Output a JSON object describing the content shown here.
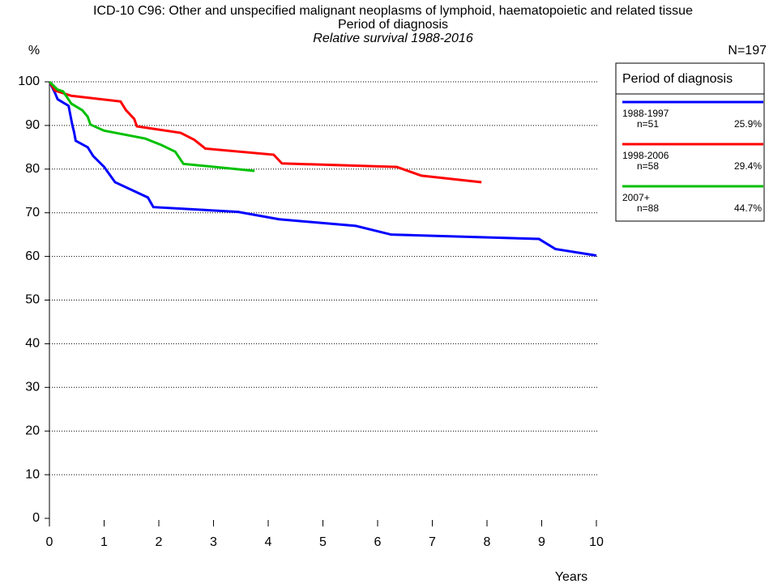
{
  "chart_data": {
    "type": "line",
    "title": "ICD-10 C96: Other and unspecified malignant neoplasms of lymphoid, haematopoietic and related tissue",
    "subtitle": "Period of diagnosis",
    "subtitle2": "Relative survival 1988-2016",
    "y_label": "%",
    "x_label": "Years",
    "n_total": "N=197",
    "legend_title": "Period of diagnosis",
    "xlim": [
      0,
      10
    ],
    "xticks": [
      0,
      1,
      2,
      3,
      4,
      5,
      6,
      7,
      8,
      9,
      10
    ],
    "ylim": [
      0,
      100
    ],
    "yticks": [
      0,
      10,
      20,
      30,
      40,
      50,
      60,
      70,
      80,
      90,
      100
    ],
    "grid": true,
    "series": [
      {
        "name": "1988-1997",
        "n": "n=51",
        "share": "25.9%",
        "color": "#0000ff",
        "x": [
          0,
          0.1,
          0.15,
          0.35,
          0.42,
          0.45,
          0.48,
          0.7,
          0.8,
          1.0,
          1.2,
          1.8,
          1.9,
          3.45,
          4.2,
          5.6,
          6.25,
          8.95,
          9.25,
          10
        ],
        "values": [
          100,
          97.5,
          96,
          94.5,
          90,
          88.5,
          86.5,
          85,
          83,
          80.5,
          77,
          73.5,
          71.3,
          70.2,
          68.5,
          67,
          65,
          64,
          61.7,
          60.2
        ]
      },
      {
        "name": "1998-2006",
        "n": "n=58",
        "share": "29.4%",
        "color": "#ff0000",
        "x": [
          0,
          0.1,
          0.4,
          1.3,
          1.4,
          1.55,
          1.6,
          2.4,
          2.65,
          2.85,
          4.1,
          4.25,
          6.35,
          6.8,
          7.9
        ],
        "values": [
          100,
          98,
          96.8,
          95.5,
          93.5,
          91.5,
          89.8,
          88.3,
          86.7,
          84.7,
          83.3,
          81.3,
          80.5,
          78.5,
          77
        ]
      },
      {
        "name": "2007+",
        "n": "n=88",
        "share": "44.7%",
        "color": "#00c000",
        "x": [
          0,
          0.15,
          0.25,
          0.4,
          0.6,
          0.7,
          0.75,
          1.0,
          1.75,
          2.05,
          2.3,
          2.45,
          3.75
        ],
        "values": [
          100,
          98.2,
          97.8,
          95,
          93.5,
          92,
          90.2,
          88.8,
          87,
          85.5,
          84,
          81.2,
          79.6
        ]
      }
    ]
  }
}
